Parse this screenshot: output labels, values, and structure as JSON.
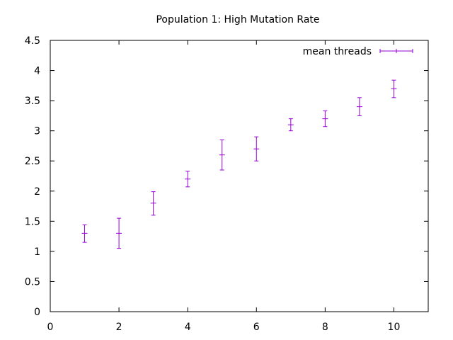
{
  "chart_data": {
    "type": "scatter",
    "title": "Population 1: High Mutation Rate",
    "xlabel": "",
    "ylabel": "",
    "xlim": [
      0,
      11
    ],
    "ylim": [
      0,
      4.5
    ],
    "xticks": [
      "0",
      "2",
      "4",
      "6",
      "8",
      "10"
    ],
    "yticks": [
      "0",
      "0.5",
      "1",
      "1.5",
      "2",
      "2.5",
      "3",
      "3.5",
      "4",
      "4.5"
    ],
    "grid": false,
    "legend_position": "top-right",
    "series": [
      {
        "name": "mean threads",
        "color": "#9400d3",
        "style": "yerrorbars",
        "x": [
          1,
          2,
          3,
          4,
          5,
          6,
          7,
          8,
          9,
          10
        ],
        "y": [
          1.3,
          1.3,
          1.8,
          2.2,
          2.6,
          2.7,
          3.1,
          3.2,
          3.4,
          3.7
        ],
        "y_low": [
          1.15,
          1.05,
          1.6,
          2.07,
          2.35,
          2.5,
          3.0,
          3.07,
          3.25,
          3.55
        ],
        "y_high": [
          1.44,
          1.55,
          1.99,
          2.33,
          2.85,
          2.9,
          3.2,
          3.33,
          3.55,
          3.84
        ]
      }
    ]
  }
}
